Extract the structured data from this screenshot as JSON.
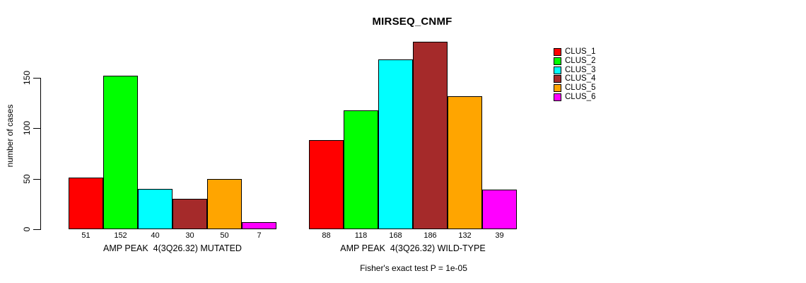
{
  "chart_data": {
    "type": "bar",
    "title": "MIRSEQ_CNMF",
    "ylabel": "number of cases",
    "xlabel": "",
    "ylim": [
      0,
      150
    ],
    "yticks": [
      0,
      50,
      100,
      150
    ],
    "grid": false,
    "legend_position": "right",
    "bar_value_labels": true,
    "categories": [
      "AMP PEAK  4(3Q26.32) MUTATED",
      "AMP PEAK  4(3Q26.32) WILD-TYPE"
    ],
    "series": [
      {
        "name": "CLUS_1",
        "color": "#FF0000",
        "values": [
          51,
          88
        ]
      },
      {
        "name": "CLUS_2",
        "color": "#00FF00",
        "values": [
          152,
          118
        ]
      },
      {
        "name": "CLUS_3",
        "color": "#00FFFF",
        "values": [
          40,
          168
        ]
      },
      {
        "name": "CLUS_4",
        "color": "#A52A2A",
        "values": [
          30,
          186
        ]
      },
      {
        "name": "CLUS_5",
        "color": "#FFA500",
        "values": [
          50,
          132
        ]
      },
      {
        "name": "CLUS_6",
        "color": "#FF00FF",
        "values": [
          7,
          39
        ]
      }
    ],
    "annotation": "Fisher's exact test P = 1e-05"
  }
}
